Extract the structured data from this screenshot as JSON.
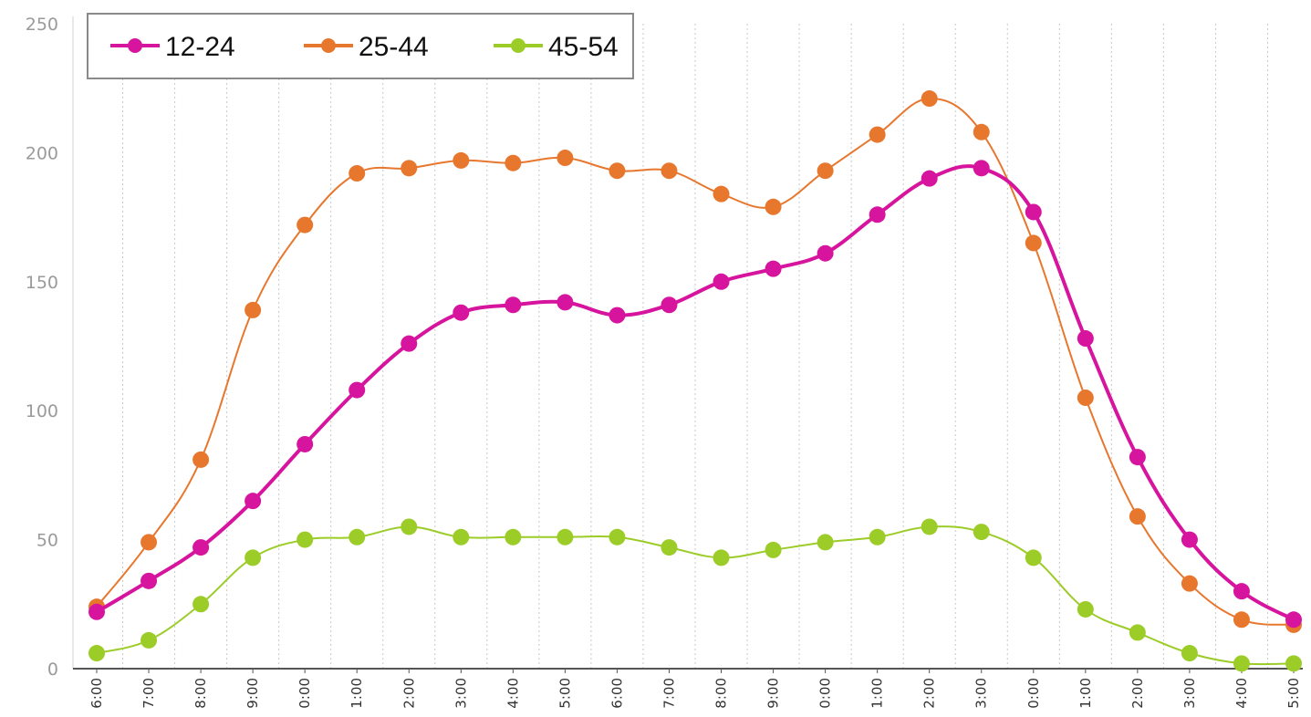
{
  "chart_data": {
    "type": "line",
    "title": "",
    "xlabel": "",
    "ylabel": "",
    "ylim": [
      0,
      250
    ],
    "yticks": [
      "0",
      "50",
      "100",
      "150",
      "200",
      "250"
    ],
    "grid": "vertical dotted",
    "legend_position": "top-left",
    "categories": [
      "6:00",
      "7:00",
      "8:00",
      "9:00",
      "0:00",
      "1:00",
      "2:00",
      "3:00",
      "4:00",
      "5:00",
      "6:00",
      "7:00",
      "8:00",
      "9:00",
      "0:00",
      "1:00",
      "2:00",
      "3:00",
      "0:00",
      "1:00",
      "2:00",
      "3:00",
      "4:00",
      "5:00"
    ],
    "series": [
      {
        "name": "12-24",
        "color": "#d6149e",
        "values": [
          22,
          34,
          47,
          65,
          87,
          108,
          126,
          138,
          141,
          142,
          137,
          141,
          150,
          155,
          161,
          176,
          190,
          194,
          177,
          128,
          82,
          50,
          30,
          19
        ]
      },
      {
        "name": "25-44",
        "color": "#e8772e",
        "values": [
          24,
          49,
          81,
          139,
          172,
          192,
          194,
          197,
          196,
          198,
          193,
          193,
          184,
          179,
          193,
          207,
          221,
          208,
          165,
          105,
          59,
          33,
          19,
          17
        ]
      },
      {
        "name": "45-54",
        "color": "#9ccc28",
        "values": [
          6,
          11,
          25,
          43,
          50,
          51,
          55,
          51,
          51,
          51,
          51,
          47,
          43,
          46,
          49,
          51,
          55,
          53,
          43,
          23,
          14,
          6,
          2,
          2
        ]
      }
    ]
  }
}
